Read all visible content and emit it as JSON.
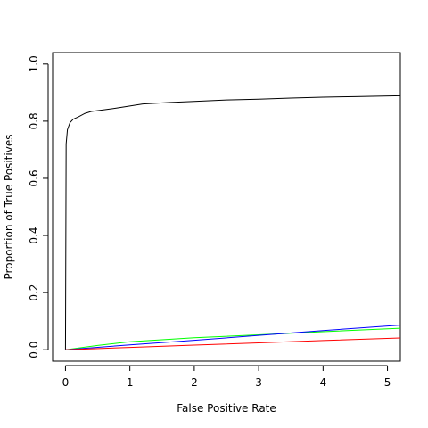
{
  "chart_data": {
    "type": "line",
    "title": "",
    "xlabel": "False Positive Rate",
    "ylabel": "Proportion of True Positives",
    "xlim": [
      -0.2,
      5.2
    ],
    "ylim": [
      -0.04,
      1.04
    ],
    "x_ticks": [
      0,
      1,
      2,
      3,
      4,
      5
    ],
    "y_ticks": [
      0.0,
      0.2,
      0.4,
      0.6,
      0.8,
      1.0
    ],
    "x_tick_labels": [
      "0",
      "1",
      "2",
      "3",
      "4",
      "5"
    ],
    "y_tick_labels": [
      "0.0",
      "0.2",
      "0.4",
      "0.6",
      "0.8",
      "1.0"
    ],
    "grid": false,
    "legend": "none",
    "series": [
      {
        "color": "#000000",
        "points": [
          [
            0.0,
            0.0
          ],
          [
            0.01,
            0.72
          ],
          [
            0.03,
            0.77
          ],
          [
            0.07,
            0.795
          ],
          [
            0.12,
            0.807
          ],
          [
            0.2,
            0.815
          ],
          [
            0.3,
            0.827
          ],
          [
            0.4,
            0.834
          ],
          [
            0.6,
            0.84
          ],
          [
            0.8,
            0.846
          ],
          [
            1.0,
            0.853
          ],
          [
            1.2,
            0.86
          ],
          [
            1.6,
            0.865
          ],
          [
            2.0,
            0.869
          ],
          [
            2.5,
            0.874
          ],
          [
            3.0,
            0.877
          ],
          [
            3.5,
            0.881
          ],
          [
            4.0,
            0.884
          ],
          [
            4.5,
            0.886
          ],
          [
            5.2,
            0.889
          ]
        ]
      },
      {
        "color": "#00ff00",
        "points": [
          [
            0.0,
            0.0
          ],
          [
            0.5,
            0.015
          ],
          [
            1.0,
            0.028
          ],
          [
            1.5,
            0.035
          ],
          [
            2.0,
            0.042
          ],
          [
            3.0,
            0.052
          ],
          [
            4.0,
            0.063
          ],
          [
            5.2,
            0.075
          ]
        ]
      },
      {
        "color": "#0000ff",
        "points": [
          [
            0.0,
            0.0
          ],
          [
            1.0,
            0.017
          ],
          [
            2.0,
            0.033
          ],
          [
            3.0,
            0.05
          ],
          [
            4.0,
            0.067
          ],
          [
            5.2,
            0.086
          ]
        ]
      },
      {
        "color": "#ff0000",
        "points": [
          [
            0.0,
            0.0
          ],
          [
            1.0,
            0.008
          ],
          [
            2.0,
            0.016
          ],
          [
            3.0,
            0.024
          ],
          [
            4.0,
            0.032
          ],
          [
            5.2,
            0.041
          ]
        ]
      }
    ]
  }
}
